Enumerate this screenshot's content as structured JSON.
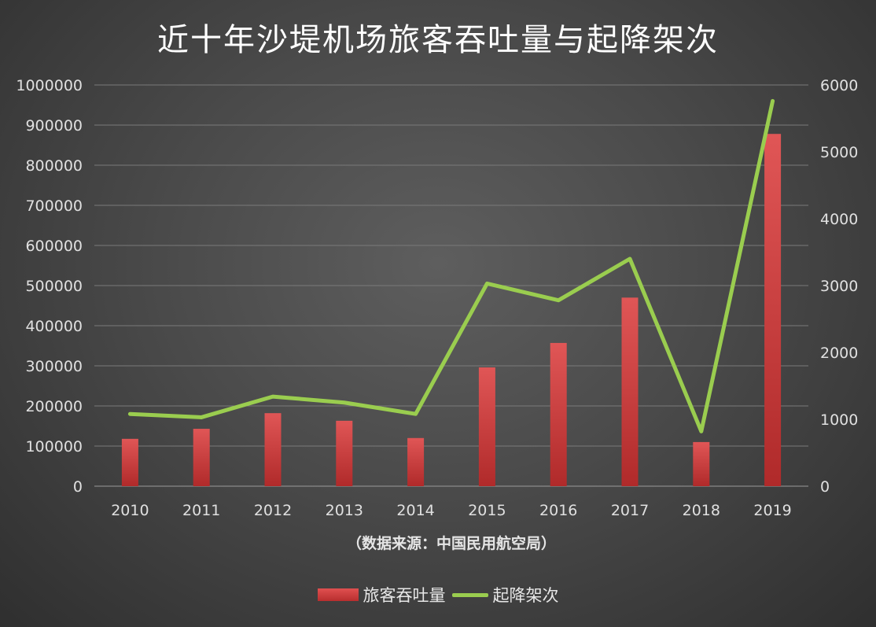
{
  "chart_data": {
    "type": "bar",
    "title": "近十年沙堤机场旅客吞吐量与起降架次",
    "source_note": "（数据来源：中国民用航空局）",
    "categories": [
      "2010",
      "2011",
      "2012",
      "2013",
      "2014",
      "2015",
      "2016",
      "2017",
      "2018",
      "2019"
    ],
    "series": [
      {
        "name": "旅客吞吐量",
        "type": "bar",
        "axis": "left",
        "color": "#c83a3a",
        "values": [
          118000,
          143000,
          182000,
          163000,
          120000,
          296000,
          357000,
          470000,
          110000,
          878000
        ]
      },
      {
        "name": "起降架次",
        "type": "line",
        "axis": "right",
        "color": "#9acd4f",
        "values": [
          1080,
          1030,
          1340,
          1250,
          1080,
          3030,
          2780,
          3400,
          820,
          5760
        ]
      }
    ],
    "y_left": {
      "min": 0,
      "max": 1000000,
      "ticks": [
        "0",
        "100000",
        "200000",
        "300000",
        "400000",
        "500000",
        "600000",
        "700000",
        "800000",
        "900000",
        "1000000"
      ]
    },
    "y_right": {
      "min": 0,
      "max": 6000,
      "ticks": [
        "0",
        "1000",
        "2000",
        "3000",
        "4000",
        "5000",
        "6000"
      ]
    },
    "grid": true,
    "legend_position": "bottom"
  }
}
